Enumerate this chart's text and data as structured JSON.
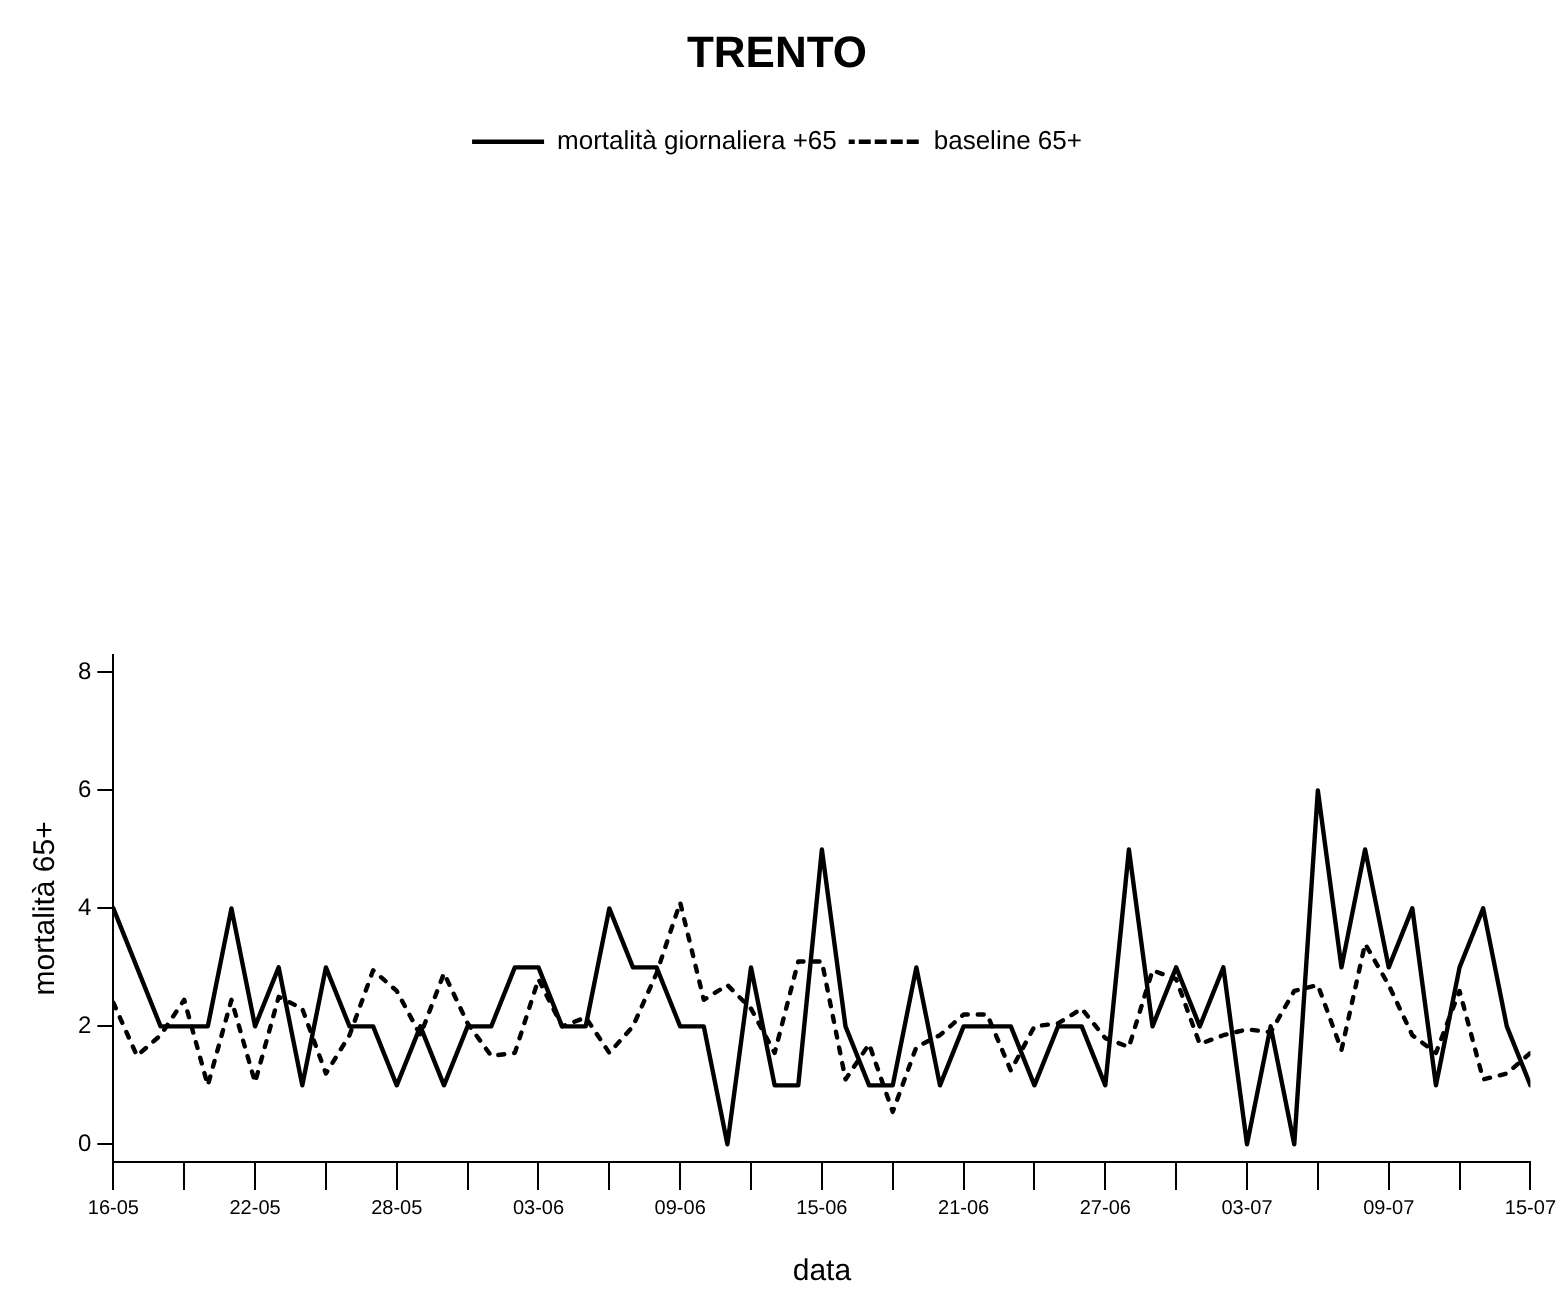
{
  "chart_data": {
    "type": "line",
    "title": "TRENTO",
    "xlabel": "data",
    "ylabel": "mortalità 65+",
    "x": [
      "--05-16",
      "--05-17",
      "--05-18",
      "--05-19",
      "--05-20",
      "--05-21",
      "--05-22",
      "--05-23",
      "--05-24",
      "--05-25",
      "--05-26",
      "--05-27",
      "--05-28",
      "--05-29",
      "--05-30",
      "--05-31",
      "--06-01",
      "--06-02",
      "--06-03",
      "--06-04",
      "--06-05",
      "--06-06",
      "--06-07",
      "--06-08",
      "--06-09",
      "--06-10",
      "--06-11",
      "--06-12",
      "--06-13",
      "--06-14",
      "--06-15",
      "--06-16",
      "--06-17",
      "--06-18",
      "--06-19",
      "--06-20",
      "--06-21",
      "--06-22",
      "--06-23",
      "--06-24",
      "--06-25",
      "--06-26",
      "--06-27",
      "--06-28",
      "--06-29",
      "--06-30",
      "--07-01",
      "--07-02",
      "--07-03",
      "--07-04",
      "--07-05",
      "--07-06",
      "--07-07",
      "--07-08",
      "--07-09",
      "--07-10",
      "--07-11",
      "--07-12",
      "--07-13",
      "--07-14",
      "--07-15"
    ],
    "series": [
      {
        "name": "mortalità giornaliera +65",
        "color": "#000000",
        "line_style": "solid",
        "values": [
          4,
          3,
          2,
          2,
          2,
          4,
          2,
          3,
          1,
          3,
          2,
          2,
          1,
          2,
          1,
          2,
          2,
          3,
          3,
          2,
          2,
          4,
          3,
          3,
          2,
          2,
          0,
          3,
          1,
          1,
          5,
          2,
          1,
          1,
          3,
          1,
          2,
          2,
          2,
          1,
          2,
          2,
          1,
          5,
          2,
          3,
          2,
          3,
          0,
          2,
          0,
          6,
          3,
          5,
          3,
          4,
          1,
          3,
          4,
          2,
          1
        ]
      },
      {
        "name": "baseline 65+",
        "color": "#000000",
        "line_style": "dotted",
        "values": [
          2.4,
          1.5,
          1.85,
          2.45,
          1.0,
          2.45,
          1.05,
          2.5,
          2.3,
          1.2,
          1.85,
          2.95,
          2.6,
          1.85,
          2.9,
          2.05,
          1.5,
          1.55,
          2.8,
          2.0,
          2.15,
          1.55,
          2.0,
          2.9,
          4.1,
          2.45,
          2.7,
          2.3,
          1.55,
          3.1,
          3.1,
          1.1,
          1.7,
          0.55,
          1.65,
          1.85,
          2.2,
          2.2,
          1.25,
          2.0,
          2.05,
          2.3,
          1.8,
          1.65,
          2.95,
          2.8,
          1.7,
          1.85,
          1.95,
          1.9,
          2.6,
          2.7,
          1.6,
          3.4,
          2.7,
          1.85,
          1.55,
          2.6,
          1.1,
          1.2,
          1.55
        ]
      }
    ],
    "xlim": [
      "--05-16",
      "--07-15"
    ],
    "xticks": [
      {
        "value": "--05-16",
        "label": "16-05"
      },
      {
        "value": "--05-19",
        "label": null
      },
      {
        "value": "--05-22",
        "label": "22-05"
      },
      {
        "value": "--05-25",
        "label": null
      },
      {
        "value": "--05-28",
        "label": "28-05"
      },
      {
        "value": "--05-31",
        "label": null
      },
      {
        "value": "--06-03",
        "label": "03-06"
      },
      {
        "value": "--06-06",
        "label": null
      },
      {
        "value": "--06-09",
        "label": "09-06"
      },
      {
        "value": "--06-12",
        "label": null
      },
      {
        "value": "--06-15",
        "label": "15-06"
      },
      {
        "value": "--06-18",
        "label": null
      },
      {
        "value": "--06-21",
        "label": "21-06"
      },
      {
        "value": "--06-24",
        "label": null
      },
      {
        "value": "--06-27",
        "label": "27-06"
      },
      {
        "value": "--06-30",
        "label": null
      },
      {
        "value": "--07-03",
        "label": "03-07"
      },
      {
        "value": "--07-06",
        "label": null
      },
      {
        "value": "--07-09",
        "label": "09-07"
      },
      {
        "value": "--07-12",
        "label": null
      },
      {
        "value": "--07-15",
        "label": "15-07"
      }
    ],
    "ylim": [
      -0.3,
      8.3
    ],
    "yticks": [
      0,
      2,
      4,
      6,
      8
    ],
    "grid": false,
    "legend": "top",
    "marker": "none"
  }
}
